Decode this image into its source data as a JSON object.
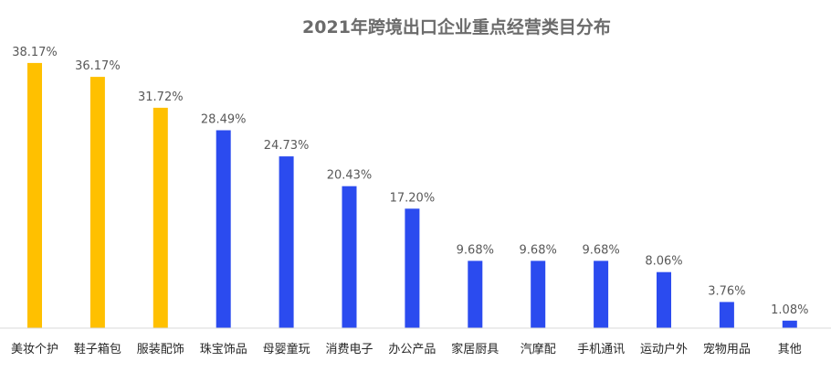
{
  "chart_data": {
    "type": "bar",
    "title": "2021年跨境出口企业重点经营类目分布",
    "categories": [
      "美妆个护",
      "鞋子箱包",
      "服装配饰",
      "珠宝饰品",
      "母婴童玩",
      "消费电子",
      "办公产品",
      "家居厨具",
      "汽摩配",
      "手机通讯",
      "运动户外",
      "宠物用品",
      "其他"
    ],
    "values": [
      38.17,
      36.17,
      31.72,
      28.49,
      24.73,
      20.43,
      17.2,
      9.68,
      9.68,
      9.68,
      8.06,
      3.76,
      1.08
    ],
    "data_labels": [
      "38.17%",
      "36.17%",
      "31.72%",
      "28.49%",
      "24.73%",
      "20.43%",
      "17.20%",
      "9.68%",
      "9.68%",
      "9.68%",
      "8.06%",
      "3.76%",
      "1.08%"
    ],
    "bar_colors": [
      "#FFC000",
      "#FFC000",
      "#FFC000",
      "#2B4BEF",
      "#2B4BEF",
      "#2B4BEF",
      "#2B4BEF",
      "#2B4BEF",
      "#2B4BEF",
      "#2B4BEF",
      "#2B4BEF",
      "#2B4BEF",
      "#2B4BEF"
    ],
    "xlabel": "",
    "ylabel": "",
    "grid": false,
    "legend": "none",
    "axis_color": "#d9d9d9"
  }
}
